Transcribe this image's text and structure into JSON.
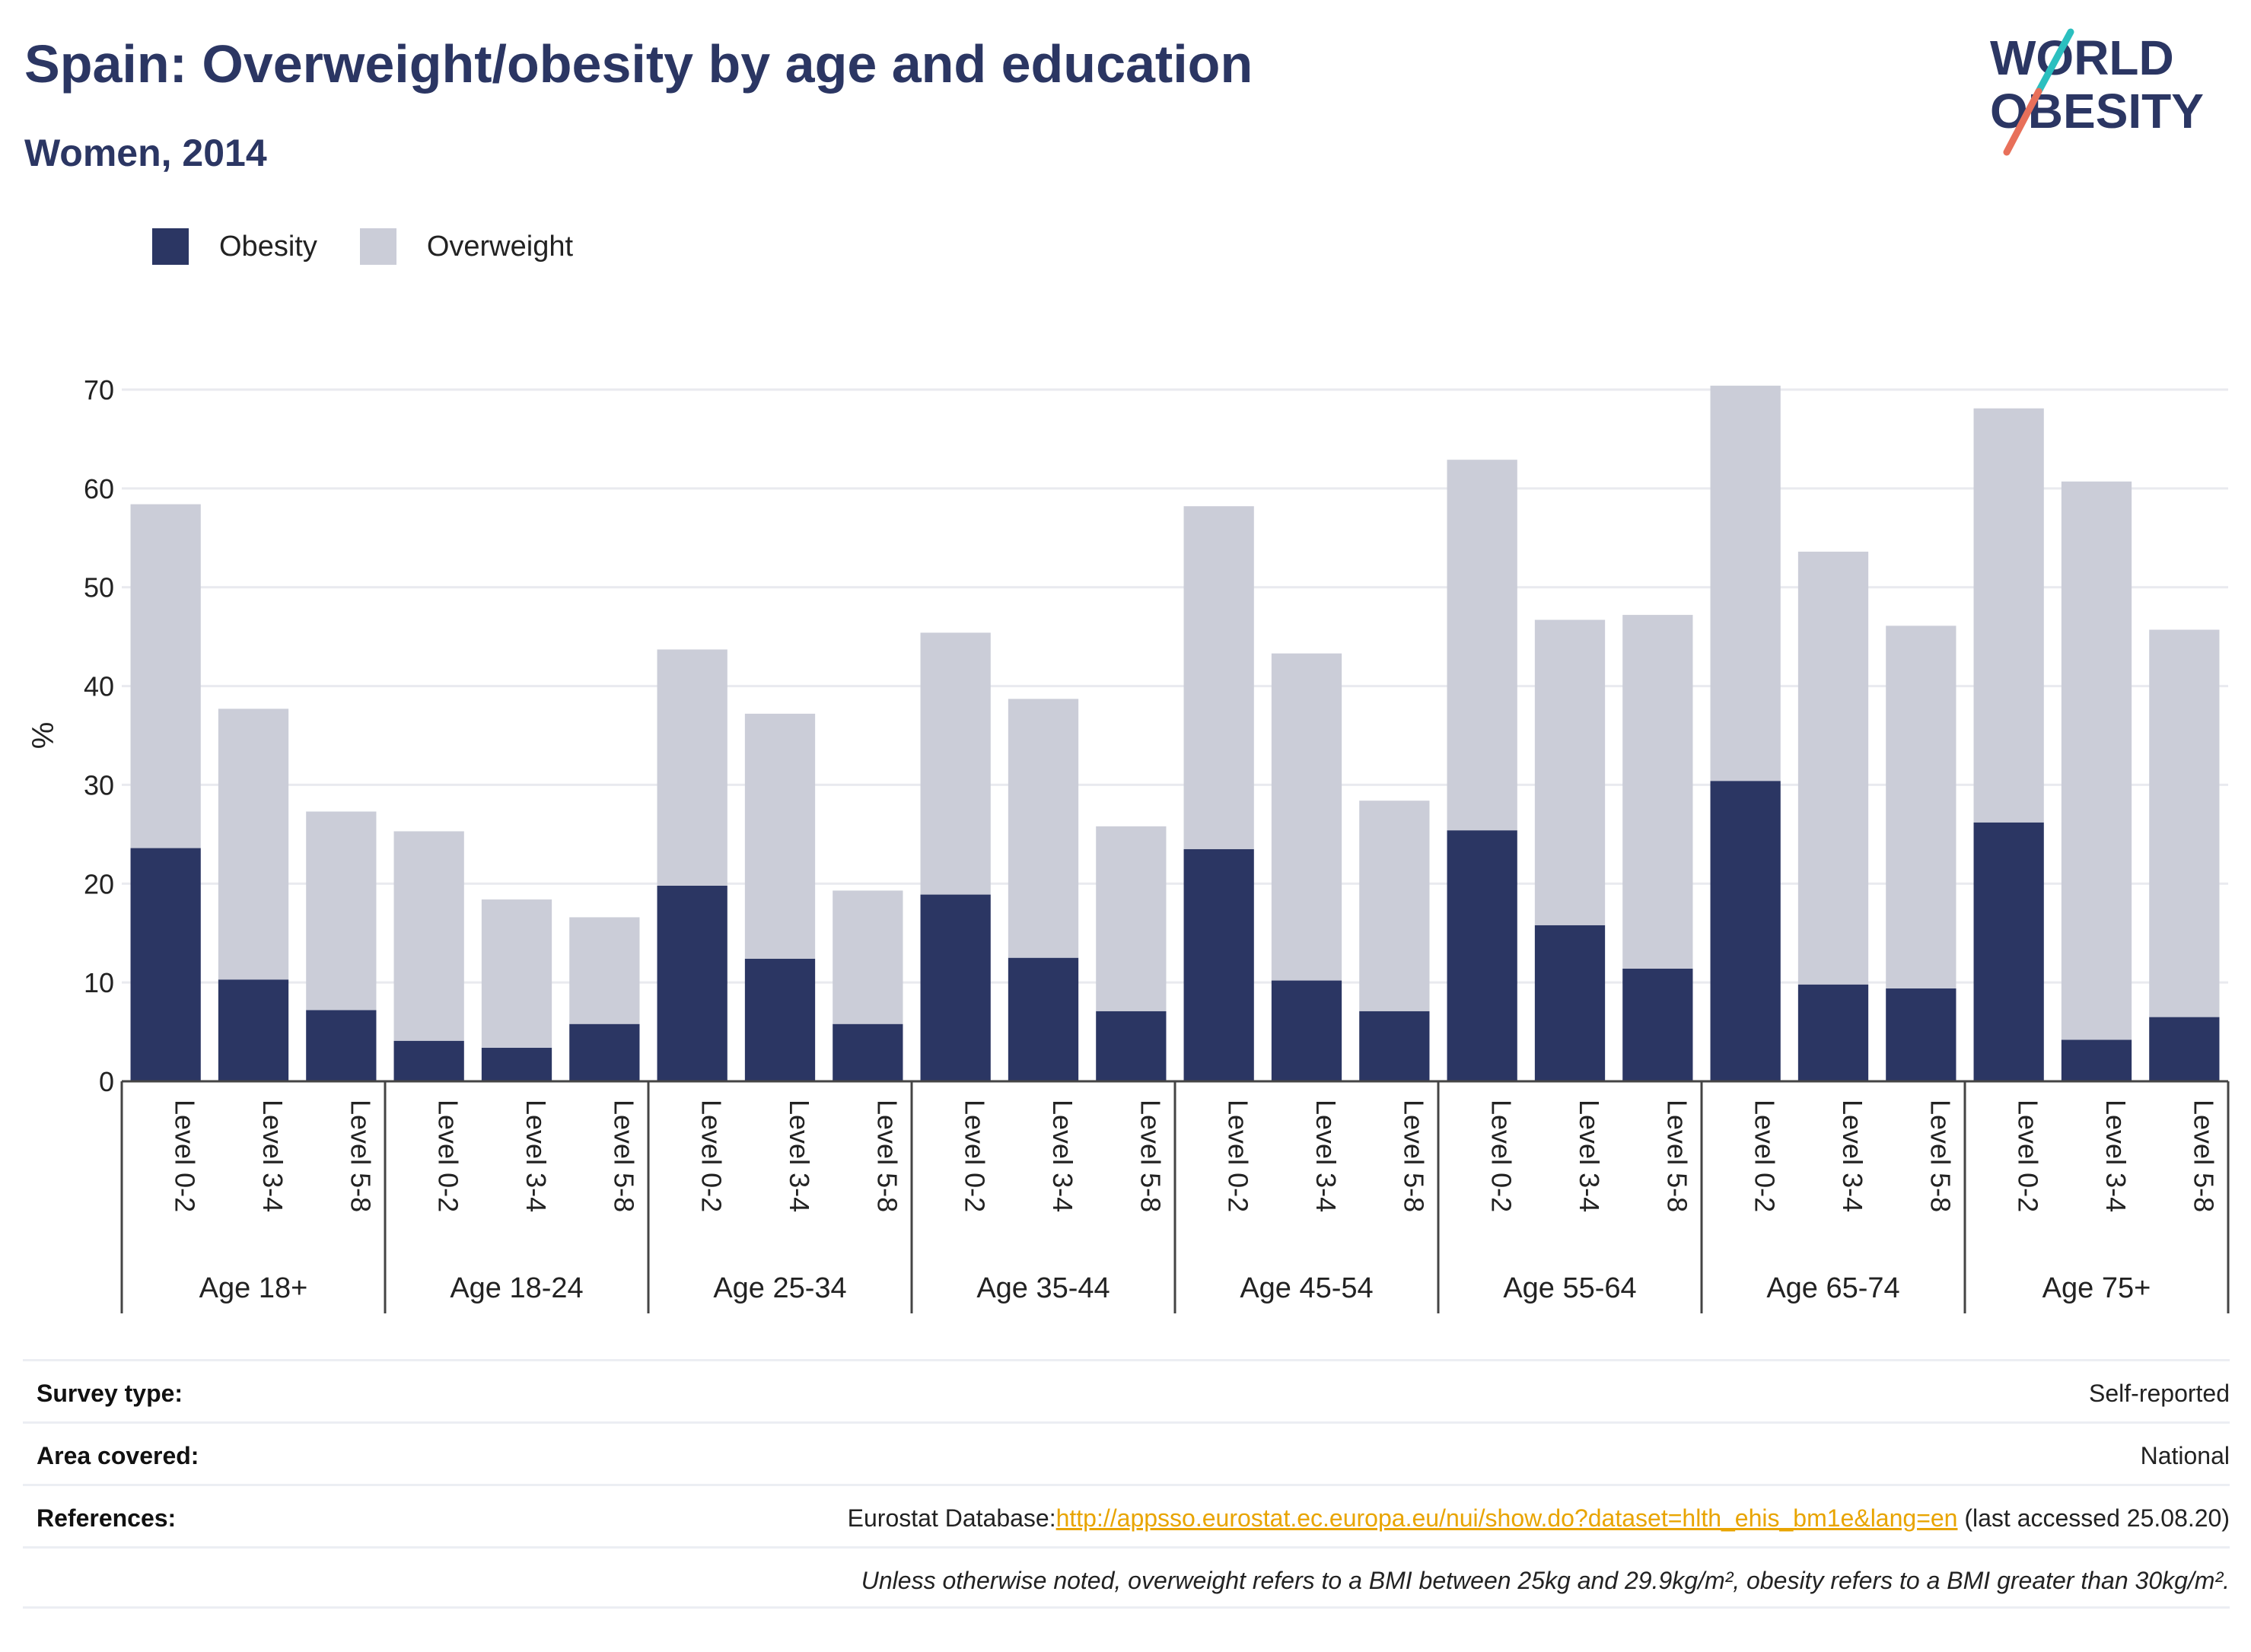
{
  "header": {
    "title": "Spain: Overweight/obesity by age and education",
    "subtitle": "Women, 2014"
  },
  "logo": {
    "line1": "WORLD",
    "line2": "OBESITY",
    "accent_teal": "#2bbfbf",
    "accent_coral": "#e8705a",
    "text_color": "#2b3663"
  },
  "legend": {
    "items": [
      {
        "label": "Obesity",
        "color": "#2b3663"
      },
      {
        "label": "Overweight",
        "color": "#cbcdd8"
      }
    ]
  },
  "chart_data": {
    "type": "bar",
    "stacked": true,
    "ylabel": "%",
    "ylim": [
      0,
      70
    ],
    "yticks": [
      0,
      10,
      20,
      30,
      40,
      50,
      60,
      70
    ],
    "grid": true,
    "legend_position": "top-left",
    "groups": [
      "Age 18+",
      "Age 18-24",
      "Age 25-34",
      "Age 35-44",
      "Age 45-54",
      "Age 55-64",
      "Age 65-74",
      "Age 75+"
    ],
    "levels": [
      "Level 0-2",
      "Level 3-4",
      "Level 5-8"
    ],
    "series": [
      {
        "name": "Obesity",
        "color": "#2b3663",
        "values": [
          23.6,
          10.3,
          7.2,
          4.1,
          3.4,
          5.8,
          19.8,
          12.4,
          5.8,
          18.9,
          12.5,
          7.1,
          23.5,
          10.2,
          7.1,
          25.4,
          15.8,
          11.4,
          30.4,
          9.8,
          9.4,
          26.2,
          4.2,
          6.5
        ]
      },
      {
        "name": "Overweight",
        "color": "#cbcdd8",
        "values": [
          34.8,
          27.4,
          20.1,
          21.2,
          15.0,
          10.8,
          23.9,
          24.8,
          13.5,
          26.5,
          26.2,
          18.7,
          34.7,
          33.1,
          21.3,
          37.5,
          30.9,
          35.8,
          40.0,
          43.8,
          36.7,
          41.9,
          56.5,
          39.2
        ]
      }
    ]
  },
  "info": {
    "survey_type_label": "Survey type:",
    "survey_type_value": "Self-reported",
    "area_label": "Area covered:",
    "area_value": "National",
    "references_label": "References:",
    "references_prefix": "Eurostat Database:",
    "references_link": "http://appsso.eurostat.ec.europa.eu/nui/show.do?dataset=hlth_ehis_bm1e&lang=en",
    "references_suffix": " (last accessed 25.08.20)",
    "note": "Unless otherwise noted, overweight refers to a BMI between 25kg and 29.9kg/m², obesity refers to a BMI greater than 30kg/m²."
  }
}
